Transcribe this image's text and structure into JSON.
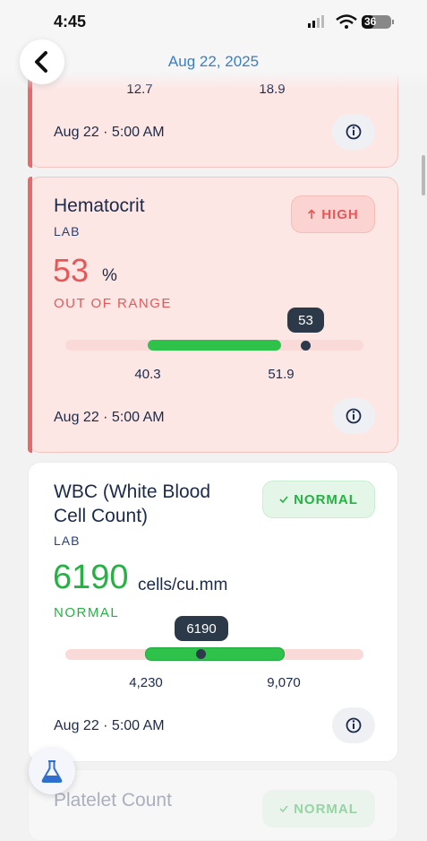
{
  "status_bar": {
    "time": "4:45",
    "battery": "36"
  },
  "header": {
    "title": "Aug 22, 2025"
  },
  "cards": [
    {
      "range_low": "12.7",
      "range_high": "18.9",
      "date": "Aug 22 · 5:00 AM"
    },
    {
      "title": "Hematocrit",
      "category": "LAB",
      "value": "53",
      "unit": "%",
      "status": "OUT OF RANGE",
      "badge": "HIGH",
      "marker": "53",
      "range_low": "40.3",
      "range_high": "51.9",
      "date": "Aug 22 · 5:00 AM"
    },
    {
      "title_lines": [
        "WBC (White Blood",
        "Cell Count)"
      ],
      "category": "LAB",
      "value": "6190",
      "unit": "cells/cu.mm",
      "status": "NORMAL",
      "badge": "NORMAL",
      "marker": "6190",
      "range_low": "4,230",
      "range_high": "9,070",
      "date": "Aug 22 · 5:00 AM"
    },
    {
      "title": "Platelet Count",
      "badge": "NORMAL"
    }
  ]
}
